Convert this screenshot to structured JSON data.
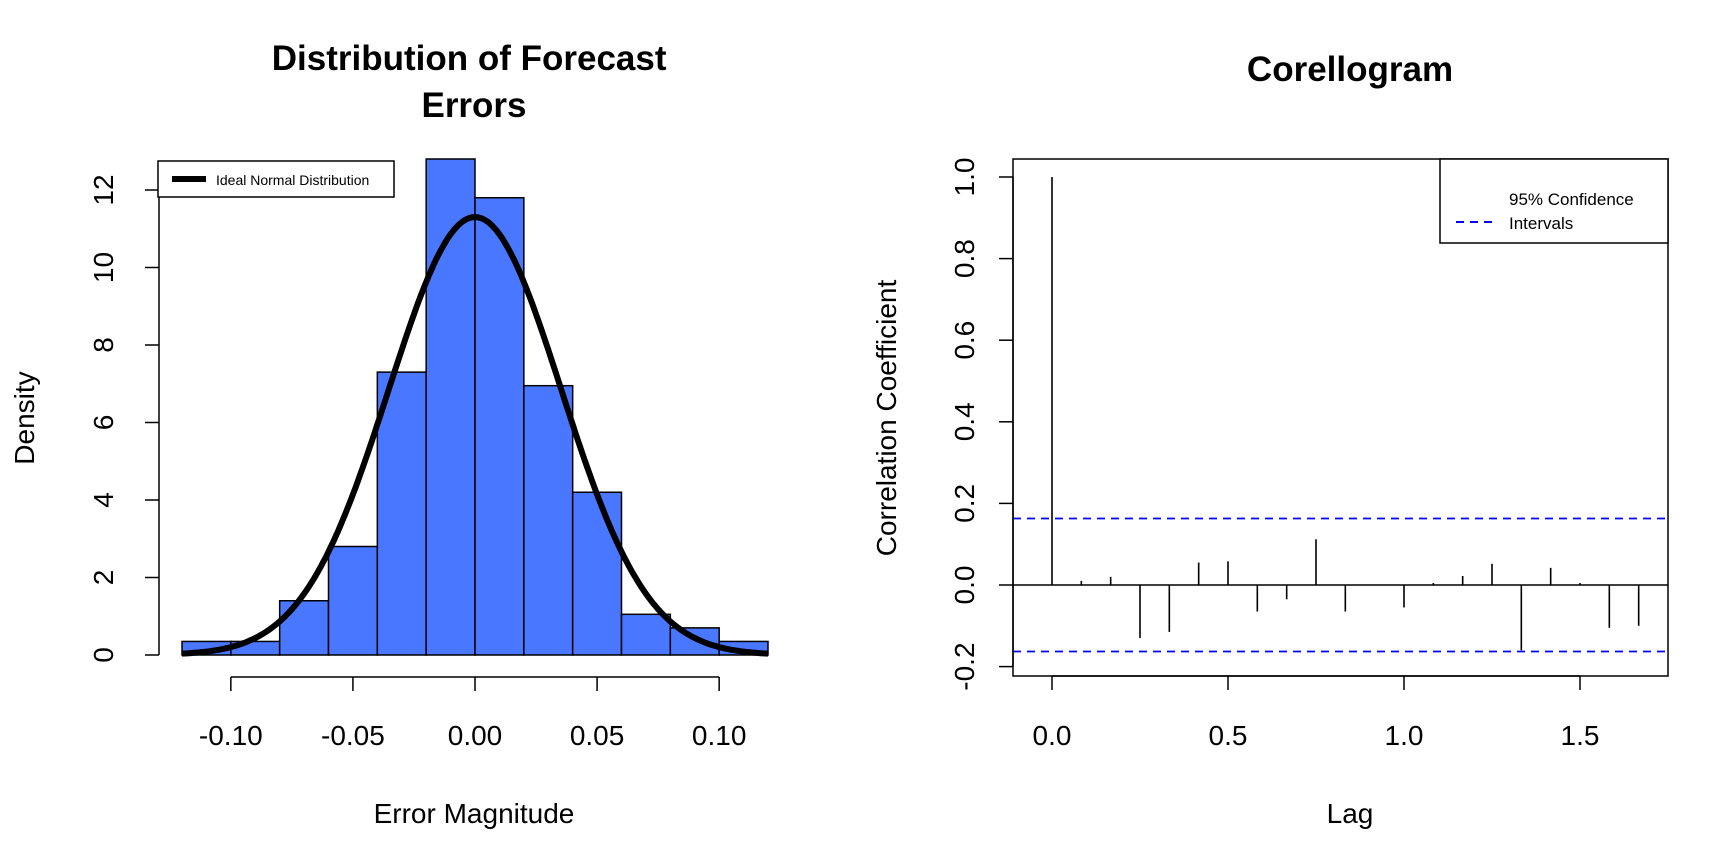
{
  "chart_data": [
    {
      "type": "bar",
      "subtype": "histogram",
      "title": "Distribution of Forecast\nErrors",
      "xlabel": "Error Magnitude",
      "ylabel": "Density",
      "xlim": [
        -0.12,
        0.12
      ],
      "ylim": [
        0,
        12.8
      ],
      "x_ticks": [
        "-0.10",
        "-0.05",
        "0.00",
        "0.05",
        "0.10"
      ],
      "y_ticks": [
        "0",
        "2",
        "4",
        "6",
        "8",
        "10",
        "12"
      ],
      "bin_width": 0.02,
      "bin_edges": [
        -0.12,
        -0.1,
        -0.08,
        -0.06,
        -0.04,
        -0.02,
        0.0,
        0.02,
        0.04,
        0.06,
        0.08,
        0.1,
        0.12
      ],
      "values": [
        0.35,
        0.35,
        1.4,
        2.8,
        7.3,
        12.8,
        11.8,
        6.95,
        4.2,
        1.05,
        0.7,
        0.35
      ],
      "bar_color": "#4a77ff",
      "curve": {
        "name": "Ideal Normal Distribution",
        "mean": 0.0,
        "sd": 0.0353,
        "color": "#000000"
      },
      "legend": {
        "position": "top-left",
        "entries": [
          "Ideal Normal Distribution"
        ]
      },
      "grid": false
    },
    {
      "type": "bar",
      "subtype": "correlogram",
      "title": "Corellogram",
      "xlabel": "Lag",
      "ylabel": "Correlation Coefficient",
      "xlim": [
        0,
        1.72
      ],
      "ylim": [
        -0.2,
        1.0
      ],
      "x_ticks": [
        "0.0",
        "0.5",
        "1.0",
        "1.5"
      ],
      "y_ticks": [
        "-0.2",
        "0.0",
        "0.2",
        "0.4",
        "0.6",
        "0.8",
        "1.0"
      ],
      "lags": [
        0.0,
        0.0833,
        0.1667,
        0.25,
        0.3333,
        0.4167,
        0.5,
        0.5833,
        0.6667,
        0.75,
        0.8333,
        0.9167,
        1.0,
        1.0833,
        1.1667,
        1.25,
        1.3333,
        1.4167,
        1.5,
        1.5833,
        1.6667
      ],
      "values": [
        1.0,
        0.01,
        0.02,
        -0.13,
        -0.115,
        0.055,
        0.058,
        -0.065,
        -0.035,
        0.112,
        -0.065,
        0.0,
        -0.055,
        0.005,
        0.022,
        0.052,
        -0.16,
        0.042,
        0.005,
        -0.105,
        -0.1
      ],
      "confidence_interval": {
        "upper": 0.163,
        "lower": -0.163,
        "color": "#0000ff"
      },
      "legend": {
        "position": "top-right",
        "entries": [
          "95% Confidence\nIntervals"
        ]
      },
      "grid": false
    }
  ]
}
